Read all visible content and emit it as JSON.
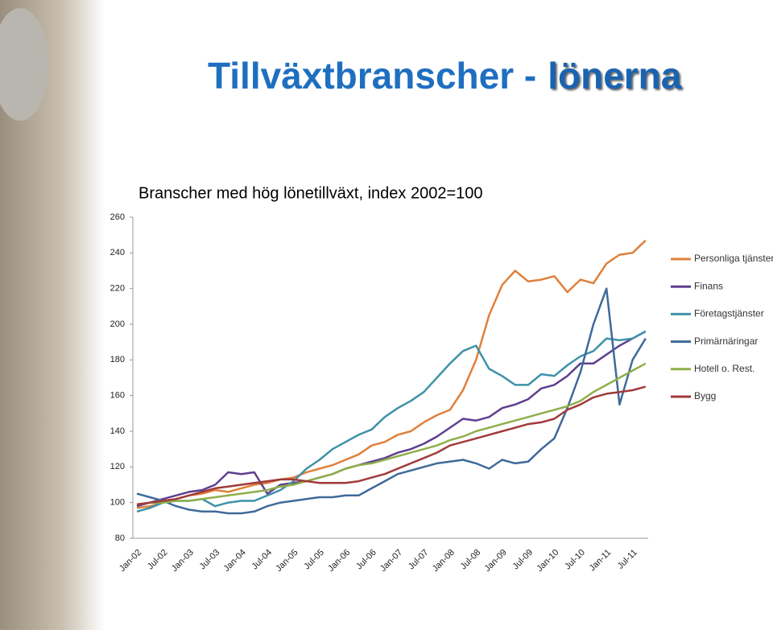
{
  "slide": {
    "title": "Tillväxtbranscher -",
    "title_highlight": "lönerna"
  },
  "chart_data": {
    "type": "line",
    "title": "Branscher med hög lönetillväxt, index 2002=100",
    "categories": [
      "Jan-02",
      null,
      "Jul-02",
      null,
      "Jan-03",
      null,
      "Jul-03",
      null,
      "Jan-04",
      null,
      "Jul-04",
      null,
      "Jan-05",
      null,
      "Jul-05",
      null,
      "Jan-06",
      null,
      "Jul-06",
      null,
      "Jan-07",
      null,
      "Jul-07",
      null,
      "Jan-08",
      null,
      "Jul-08",
      null,
      "Jan-09",
      null,
      "Jul-09",
      null,
      "Jan-10",
      null,
      "Jul-10",
      null,
      "Jan-11",
      null,
      "Jul-11",
      null
    ],
    "series": [
      {
        "name": "Personliga tjänster",
        "color": "#e0803a",
        "values": [
          97,
          98,
          100,
          102,
          104,
          105,
          107,
          106,
          108,
          110,
          111,
          113,
          114,
          117,
          119,
          121,
          124,
          127,
          132,
          134,
          138,
          140,
          145,
          149,
          152,
          163,
          180,
          205,
          222,
          230,
          224,
          225,
          227,
          218,
          225,
          223,
          234,
          239,
          240,
          247
        ]
      },
      {
        "name": "Finans",
        "color": "#5f3f8f",
        "values": [
          98,
          100,
          102,
          104,
          106,
          107,
          110,
          117,
          116,
          117,
          105,
          110,
          111,
          112,
          114,
          116,
          119,
          121,
          123,
          125,
          128,
          130,
          133,
          137,
          142,
          147,
          146,
          148,
          153,
          155,
          158,
          164,
          166,
          171,
          178,
          178,
          183,
          188,
          192,
          196
        ]
      },
      {
        "name": "Företagstjänster",
        "color": "#3f92a8",
        "values": [
          95,
          97,
          100,
          101,
          101,
          102,
          98,
          100,
          101,
          101,
          104,
          107,
          112,
          119,
          124,
          130,
          134,
          138,
          141,
          148,
          153,
          157,
          162,
          170,
          178,
          185,
          188,
          175,
          171,
          166,
          166,
          172,
          171,
          177,
          182,
          185,
          192,
          191,
          192,
          196
        ]
      },
      {
        "name": "Primärnäringar",
        "color": "#3f6a9a",
        "values": [
          105,
          103,
          101,
          98,
          96,
          95,
          95,
          94,
          94,
          95,
          98,
          100,
          101,
          102,
          103,
          103,
          104,
          104,
          108,
          112,
          116,
          118,
          120,
          122,
          123,
          124,
          122,
          119,
          124,
          122,
          123,
          130,
          136,
          153,
          173,
          200,
          220,
          155,
          180,
          192
        ]
      },
      {
        "name": "Hotell o. Rest.",
        "color": "#8faf4a",
        "values": [
          99,
          100,
          100,
          101,
          101,
          102,
          103,
          104,
          105,
          106,
          107,
          109,
          110,
          112,
          114,
          116,
          119,
          121,
          122,
          124,
          126,
          128,
          130,
          132,
          135,
          137,
          140,
          142,
          144,
          146,
          148,
          150,
          152,
          154,
          157,
          162,
          166,
          170,
          174,
          178
        ]
      },
      {
        "name": "Bygg",
        "color": "#a03a3a",
        "values": [
          99,
          100,
          101,
          102,
          104,
          106,
          108,
          109,
          110,
          111,
          112,
          113,
          113,
          112,
          111,
          111,
          111,
          112,
          114,
          116,
          119,
          122,
          125,
          128,
          132,
          134,
          136,
          138,
          140,
          142,
          144,
          145,
          147,
          152,
          155,
          159,
          161,
          162,
          163,
          165
        ]
      }
    ],
    "ylim": [
      80,
      260
    ],
    "yticks": [
      80,
      100,
      120,
      140,
      160,
      180,
      200,
      220,
      240,
      260
    ],
    "grid": false
  }
}
